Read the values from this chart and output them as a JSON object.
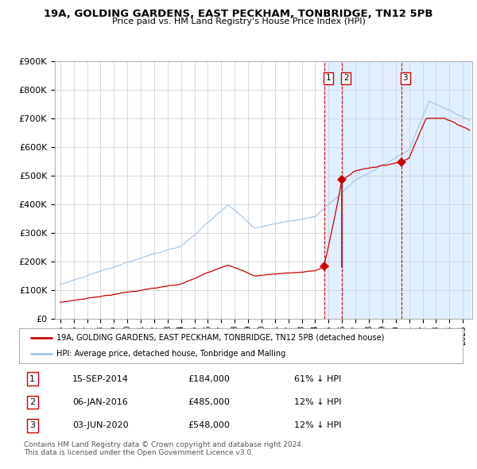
{
  "title": "19A, GOLDING GARDENS, EAST PECKHAM, TONBRIDGE, TN12 5PB",
  "subtitle": "Price paid vs. HM Land Registry's House Price Index (HPI)",
  "legend_line1": "19A, GOLDING GARDENS, EAST PECKHAM, TONBRIDGE, TN12 5PB (detached house)",
  "legend_line2": "HPI: Average price, detached house, Tonbridge and Malling",
  "transactions": [
    {
      "label": "1",
      "date": "15-SEP-2014",
      "price": 184000,
      "pct": "61% ↓ HPI"
    },
    {
      "label": "2",
      "date": "06-JAN-2016",
      "price": 485000,
      "pct": "12% ↓ HPI"
    },
    {
      "label": "3",
      "date": "03-JUN-2020",
      "price": 548000,
      "pct": "12% ↓ HPI"
    }
  ],
  "footer1": "Contains HM Land Registry data © Crown copyright and database right 2024.",
  "footer2": "This data is licensed under the Open Government Licence v3.0.",
  "hpi_color": "#a8c8e8",
  "price_color": "#cc0000",
  "vline_color": "#cc0000",
  "shade_color": "#ddeeff",
  "bg_color": "#ffffff",
  "grid_color": "#cccccc",
  "ylim": [
    0,
    900000
  ],
  "yticks": [
    0,
    100000,
    200000,
    300000,
    400000,
    500000,
    600000,
    700000,
    800000,
    900000
  ],
  "ytick_labels": [
    "£0",
    "£100K",
    "£200K",
    "£300K",
    "£400K",
    "£500K",
    "£600K",
    "£700K",
    "£800K",
    "£900K"
  ],
  "xstart": 1995,
  "xend": 2025
}
